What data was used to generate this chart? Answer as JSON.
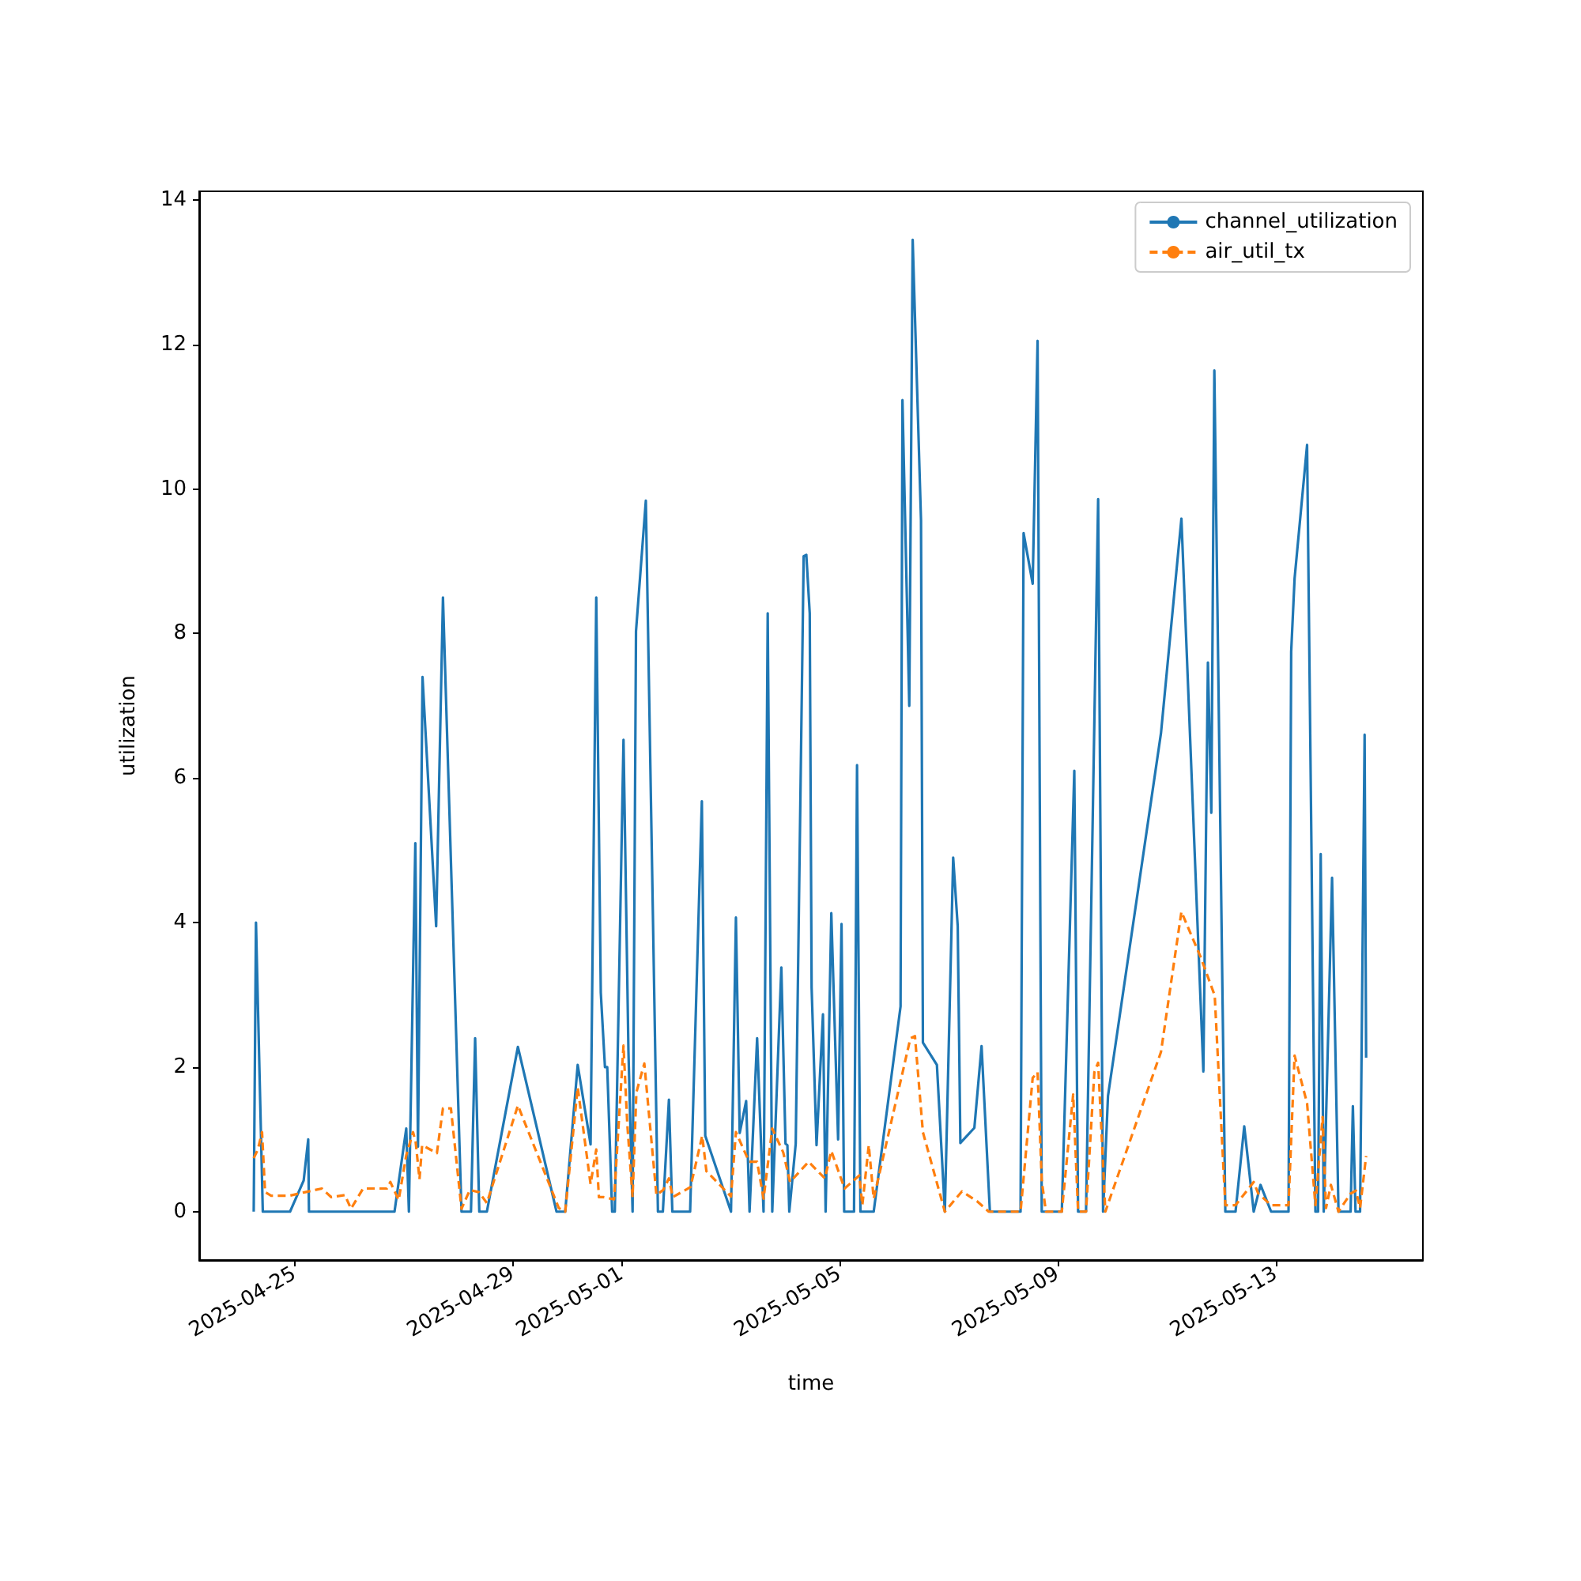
{
  "chart_data": {
    "type": "line",
    "xlabel": "time",
    "ylabel": "utilization",
    "xlim": [
      "2025-04-23T06:00",
      "2025-05-15T16:50"
    ],
    "xticks": [
      "2025-04-25",
      "2025-04-29",
      "2025-05-01",
      "2025-05-05",
      "2025-05-09",
      "2025-05-13"
    ],
    "ylim": [
      -0.67,
      14.12
    ],
    "yticks": [
      0,
      2,
      4,
      6,
      8,
      10,
      12,
      14
    ],
    "grid": false,
    "legend": "top right",
    "series": [
      {
        "name": "channel_utilization",
        "color": "#1f77b4",
        "line_style": "solid",
        "x": [
          "2025-04-24T06:00",
          "2025-04-24T07:00",
          "2025-04-24T10:00",
          "2025-04-24T22:00",
          "2025-04-25T04:00",
          "2025-04-25T06:00",
          "2025-04-25T06:20",
          "2025-04-26T20:00",
          "2025-04-27T01:10",
          "2025-04-27T02:20",
          "2025-04-27T05:10",
          "2025-04-27T06:20",
          "2025-04-27T08:20",
          "2025-04-27T14:20",
          "2025-04-27T17:20",
          "2025-04-28T01:30",
          "2025-04-28T05:40",
          "2025-04-28T07:30",
          "2025-04-28T09:20",
          "2025-04-28T12:40",
          "2025-04-29T02:20",
          "2025-04-29T19:20",
          "2025-04-29T23:10",
          "2025-04-30T04:40",
          "2025-04-30T10:20",
          "2025-04-30T12:50",
          "2025-04-30T14:50",
          "2025-04-30T16:40",
          "2025-04-30T17:40",
          "2025-04-30T19:50",
          "2025-04-30T21:00",
          "2025-05-01T00:50",
          "2025-05-01T03:00",
          "2025-05-01T04:50",
          "2025-05-01T06:20",
          "2025-05-01T10:40",
          "2025-05-01T16:00",
          "2025-05-01T18:10",
          "2025-05-01T20:50",
          "2025-05-01T22:20",
          "2025-05-02T06:10",
          "2025-05-02T11:20",
          "2025-05-02T12:50",
          "2025-05-03T00:10",
          "2025-05-03T02:20",
          "2025-05-03T04:00",
          "2025-05-03T06:50",
          "2025-05-03T08:20",
          "2025-05-03T11:40",
          "2025-05-03T14:30",
          "2025-05-03T16:20",
          "2025-05-03T18:20",
          "2025-05-03T22:20",
          "2025-05-04T00:10",
          "2025-05-04T01:00",
          "2025-05-04T01:50",
          "2025-05-04T04:40",
          "2025-05-04T08:10",
          "2025-05-04T09:20",
          "2025-05-04T10:50",
          "2025-05-04T11:40",
          "2025-05-04T13:50",
          "2025-05-04T16:40",
          "2025-05-04T17:50",
          "2025-05-04T20:20",
          "2025-05-04T23:20",
          "2025-05-05T00:50",
          "2025-05-05T02:00",
          "2025-05-05T06:20",
          "2025-05-05T07:40",
          "2025-05-05T09:10",
          "2025-05-05T15:00",
          "2025-05-06T02:50",
          "2025-05-06T03:40",
          "2025-05-06T06:40",
          "2025-05-06T08:10",
          "2025-05-06T11:50",
          "2025-05-06T12:40",
          "2025-05-06T18:50",
          "2025-05-06T22:20",
          "2025-05-07T02:00",
          "2025-05-07T04:00",
          "2025-05-07T05:10",
          "2025-05-07T11:20",
          "2025-05-07T14:30",
          "2025-05-07T18:10",
          "2025-05-08T07:40",
          "2025-05-08T09:00",
          "2025-05-08T13:00",
          "2025-05-08T15:10",
          "2025-05-08T17:00",
          "2025-05-09T01:50",
          "2025-05-09T07:20",
          "2025-05-09T09:00",
          "2025-05-09T12:30",
          "2025-05-09T17:50",
          "2025-05-09T20:00",
          "2025-05-09T22:10",
          "2025-05-10T21:30",
          "2025-05-11T06:30",
          "2025-05-11T16:10",
          "2025-05-11T18:10",
          "2025-05-11T19:40",
          "2025-05-11T21:00",
          "2025-05-12T01:50",
          "2025-05-12T06:20",
          "2025-05-12T10:10",
          "2025-05-12T14:20",
          "2025-05-12T17:20",
          "2025-05-12T22:00",
          "2025-05-13T05:40",
          "2025-05-13T06:50",
          "2025-05-13T08:20",
          "2025-05-13T13:50",
          "2025-05-13T17:30",
          "2025-05-13T18:40",
          "2025-05-13T19:50",
          "2025-05-13T21:10",
          "2025-05-14T00:50",
          "2025-05-14T03:40",
          "2025-05-14T09:00",
          "2025-05-14T10:00",
          "2025-05-14T11:10",
          "2025-05-14T13:10",
          "2025-05-14T15:10",
          "2025-05-14T15:50"
        ],
        "values": [
          0,
          4.0,
          0,
          0,
          0.43,
          1.0,
          0,
          0,
          1.15,
          0,
          5.1,
          0.9,
          7.4,
          3.95,
          8.5,
          0,
          0,
          2.4,
          0,
          0,
          2.28,
          0,
          0,
          2.03,
          0.93,
          8.5,
          3.03,
          2.0,
          2.0,
          0,
          0,
          6.53,
          2.23,
          0,
          8.03,
          9.84,
          0,
          0,
          1.55,
          0,
          0,
          5.68,
          1.05,
          0,
          4.07,
          1.09,
          1.53,
          0,
          2.4,
          0,
          8.28,
          0,
          3.38,
          0.94,
          0.92,
          0,
          0.94,
          9.07,
          9.09,
          8.28,
          3.1,
          0.92,
          2.73,
          0,
          4.13,
          1.0,
          3.98,
          0,
          0,
          6.18,
          0,
          0,
          2.84,
          11.23,
          7.0,
          13.45,
          9.57,
          2.34,
          2.03,
          0,
          4.9,
          3.95,
          0.95,
          1.16,
          2.29,
          0,
          0,
          9.39,
          8.69,
          12.05,
          0,
          0,
          6.1,
          0,
          0,
          9.86,
          0,
          1.6,
          6.62,
          9.59,
          1.94,
          7.6,
          5.52,
          11.64,
          0,
          0,
          1.18,
          0,
          0.37,
          0,
          0,
          7.75,
          8.76,
          10.61,
          0,
          0,
          4.95,
          0,
          4.62,
          0,
          0,
          1.46,
          0,
          0,
          6.6,
          2.13
        ]
      },
      {
        "name": "air_util_tx",
        "color": "#ff7f0e",
        "line_style": "dashed",
        "x": [
          "2025-04-24T06:00",
          "2025-04-24T07:50",
          "2025-04-24T09:40",
          "2025-04-24T11:00",
          "2025-04-24T13:40",
          "2025-04-24T21:40",
          "2025-04-25T04:40",
          "2025-04-25T12:00",
          "2025-04-25T16:10",
          "2025-04-25T22:10",
          "2025-04-26T00:50",
          "2025-04-26T06:10",
          "2025-04-26T16:40",
          "2025-04-26T18:10",
          "2025-04-26T21:50",
          "2025-04-27T01:10",
          "2025-04-27T04:10",
          "2025-04-27T05:20",
          "2025-04-27T07:00",
          "2025-04-27T08:10",
          "2025-04-27T14:40",
          "2025-04-27T17:20",
          "2025-04-27T20:50",
          "2025-04-28T01:30",
          "2025-04-28T05:10",
          "2025-04-28T09:10",
          "2025-04-28T12:40",
          "2025-04-29T02:20",
          "2025-04-29T20:20",
          "2025-04-29T23:10",
          "2025-04-30T04:40",
          "2025-04-30T10:20",
          "2025-04-30T12:50",
          "2025-04-30T14:00",
          "2025-04-30T16:10",
          "2025-04-30T20:40",
          "2025-05-01T00:50",
          "2025-05-01T02:30",
          "2025-05-01T04:50",
          "2025-05-01T06:30",
          "2025-05-01T10:00",
          "2025-05-01T15:20",
          "2025-05-01T18:20",
          "2025-05-01T20:50",
          "2025-05-01T22:30",
          "2025-05-02T06:20",
          "2025-05-02T11:30",
          "2025-05-02T13:20",
          "2025-05-03T00:10",
          "2025-05-03T02:20",
          "2025-05-03T08:10",
          "2025-05-03T11:40",
          "2025-05-03T14:30",
          "2025-05-03T18:20",
          "2025-05-03T23:10",
          "2025-05-04T02:10",
          "2025-05-04T10:20",
          "2025-05-04T17:30",
          "2025-05-04T20:20",
          "2025-05-05T02:10",
          "2025-05-05T08:40",
          "2025-05-05T10:00",
          "2025-05-05T12:50",
          "2025-05-05T15:00",
          "2025-05-06T07:10",
          "2025-05-06T09:10",
          "2025-05-06T12:40",
          "2025-05-06T22:20",
          "2025-05-07T05:50",
          "2025-05-07T12:40",
          "2025-05-07T17:40",
          "2025-05-08T07:40",
          "2025-05-08T13:00",
          "2025-05-08T15:10",
          "2025-05-08T17:00",
          "2025-05-08T18:50",
          "2025-05-09T01:50",
          "2025-05-09T06:50",
          "2025-05-09T09:00",
          "2025-05-09T12:30",
          "2025-05-09T16:10",
          "2025-05-09T17:50",
          "2025-05-09T21:00",
          "2025-05-10T21:30",
          "2025-05-11T06:30",
          "2025-05-11T15:00",
          "2025-05-11T21:10",
          "2025-05-12T01:50",
          "2025-05-12T06:20",
          "2025-05-12T14:20",
          "2025-05-12T16:20",
          "2025-05-12T22:00",
          "2025-05-13T05:40",
          "2025-05-13T08:20",
          "2025-05-13T13:50",
          "2025-05-13T17:30",
          "2025-05-13T20:40",
          "2025-05-13T22:10",
          "2025-05-14T00:20",
          "2025-05-14T03:40",
          "2025-05-14T09:00",
          "2025-05-14T11:20",
          "2025-05-14T13:10",
          "2025-05-14T15:50"
        ],
        "values": [
          0.74,
          0.86,
          1.1,
          0.27,
          0.22,
          0.22,
          0.27,
          0.32,
          0.2,
          0.23,
          0.04,
          0.32,
          0.32,
          0.41,
          0.16,
          0.78,
          1.1,
          0.96,
          0.45,
          0.92,
          0.81,
          1.43,
          1.43,
          0.04,
          0.3,
          0.27,
          0.12,
          1.47,
          0.05,
          0,
          1.72,
          0.38,
          0.86,
          0.2,
          0.2,
          0.17,
          2.3,
          1.21,
          0.2,
          1.65,
          2.05,
          0.23,
          0.3,
          0.46,
          0.2,
          0.34,
          1.05,
          0.56,
          0.21,
          1.1,
          0.69,
          0.69,
          0.18,
          1.15,
          0.82,
          0.41,
          0.69,
          0.46,
          0.84,
          0.32,
          0.5,
          0.09,
          0.92,
          0.18,
          2.4,
          2.43,
          1.1,
          0,
          0.28,
          0.14,
          0,
          0,
          1.85,
          1.93,
          0.43,
          0,
          0,
          1.62,
          0,
          0,
          1.93,
          2.06,
          0,
          2.21,
          4.15,
          3.52,
          2.99,
          0.09,
          0.09,
          0.41,
          0.25,
          0.09,
          0.09,
          2.16,
          1.5,
          0.09,
          1.31,
          0.05,
          0.37,
          0,
          0.25,
          0.29,
          0.05,
          0.77
        ]
      }
    ]
  }
}
